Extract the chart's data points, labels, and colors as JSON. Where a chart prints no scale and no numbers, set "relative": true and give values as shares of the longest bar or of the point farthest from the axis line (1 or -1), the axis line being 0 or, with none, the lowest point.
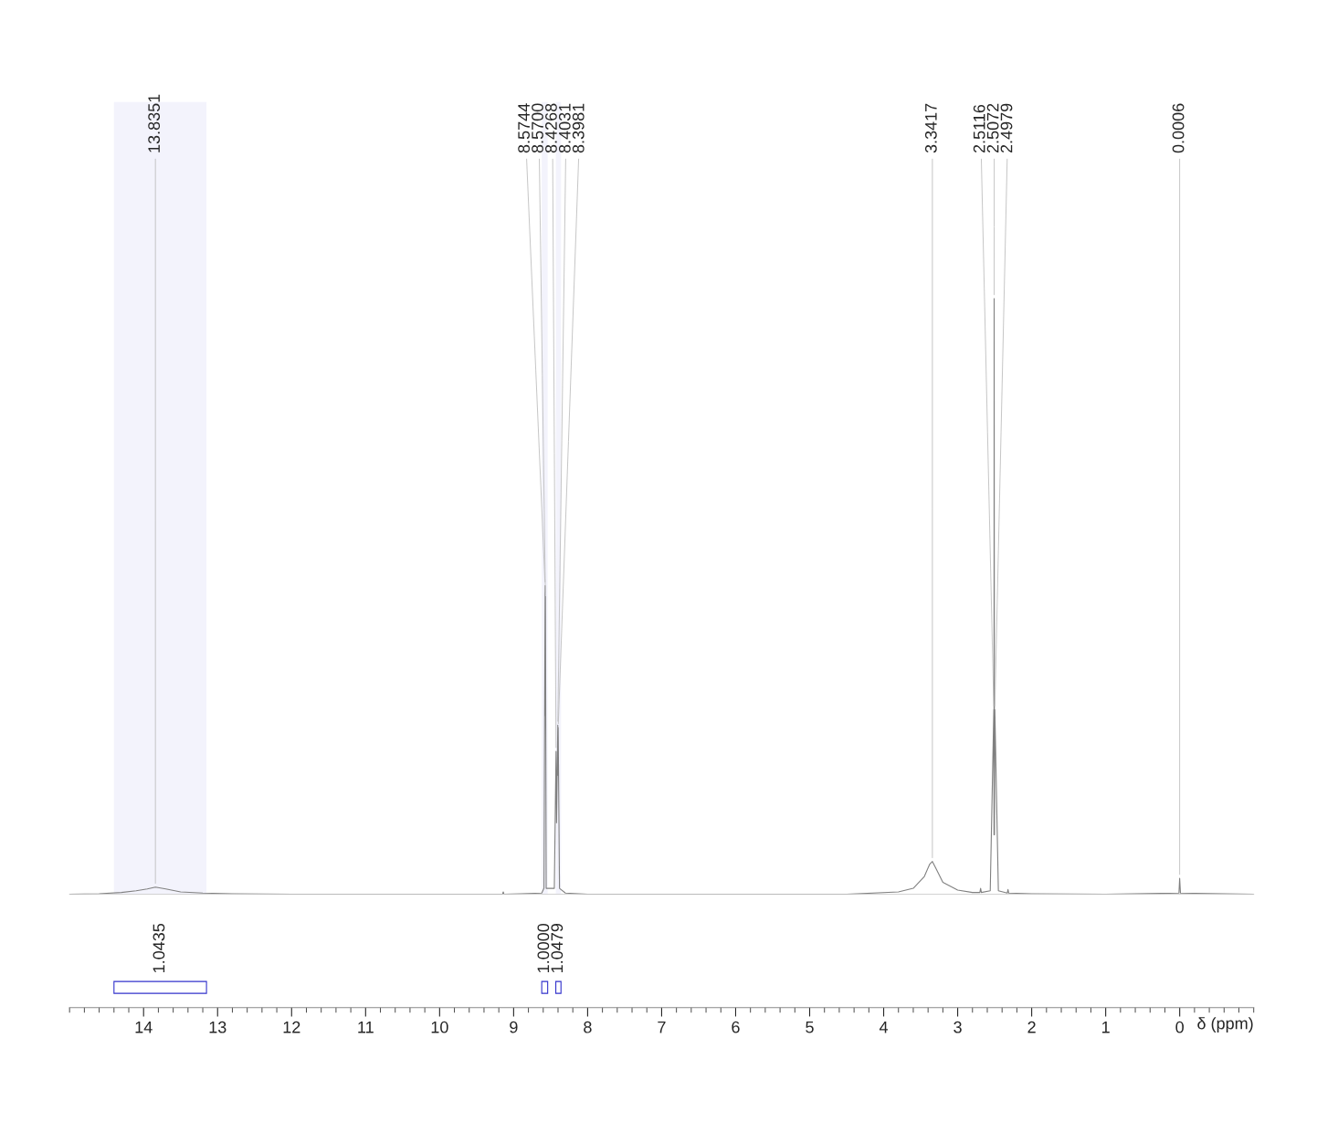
{
  "chart_data": {
    "type": "line",
    "relative": true,
    "xlabel": "δ (ppm)",
    "xlim": [
      15,
      -1
    ],
    "xticks": [
      14,
      13,
      12,
      11,
      10,
      9,
      8,
      7,
      6,
      5,
      4,
      3,
      2,
      1,
      0
    ],
    "tick_labels": "x",
    "legend": false,
    "x": [
      15.0,
      14.6,
      14.3,
      14.1,
      13.95,
      13.84,
      13.7,
      13.5,
      13.2,
      12.8,
      12.0,
      9.15,
      9.14,
      9.13,
      8.9,
      8.62,
      8.59,
      8.5744,
      8.572,
      8.57,
      8.56,
      8.45,
      8.4268,
      8.42,
      8.4031,
      8.4,
      8.3981,
      8.38,
      8.3,
      8.0,
      4.5,
      3.8,
      3.6,
      3.45,
      3.38,
      3.3417,
      3.3,
      3.2,
      3.0,
      2.8,
      2.7,
      2.69,
      2.68,
      2.56,
      2.5116,
      2.509,
      2.5072,
      2.503,
      2.4979,
      2.45,
      2.33,
      2.32,
      2.31,
      2.0,
      1.0,
      0.01,
      0.0006,
      -0.01,
      -1.0
    ],
    "series": [
      {
        "color": "#808080",
        "values": [
          0,
          0.001,
          0.003,
          0.006,
          0.009,
          0.012,
          0.009,
          0.004,
          0.002,
          0.001,
          0,
          0,
          0.004,
          0,
          0.001,
          0.002,
          0.01,
          0.518,
          0.3,
          0.5,
          0.01,
          0.01,
          0.24,
          0.12,
          0.284,
          0.2,
          0.28,
          0.01,
          0.002,
          0,
          0,
          0.004,
          0.01,
          0.03,
          0.05,
          0.055,
          0.045,
          0.02,
          0.007,
          0.003,
          0.003,
          0.01,
          0.003,
          0.006,
          0.31,
          0.1,
          1.0,
          0.1,
          0.31,
          0.006,
          0.002,
          0.008,
          0.002,
          0.001,
          0,
          0.002,
          0.027,
          0.002,
          0
        ]
      }
    ],
    "annotations": [
      {
        "text": "13.8351",
        "x": 13.84,
        "y": 0.012
      },
      {
        "text": "8.5744",
        "x": 8.5744,
        "y": 0.518
      },
      {
        "text": "8.5700",
        "x": 8.57,
        "y": 0.5
      },
      {
        "text": "8.4268",
        "x": 8.4268,
        "y": 0.24
      },
      {
        "text": "8.4031",
        "x": 8.4031,
        "y": 0.284
      },
      {
        "text": "8.3981",
        "x": 8.3981,
        "y": 0.28
      },
      {
        "text": "3.3417",
        "x": 3.3417,
        "y": 0.055
      },
      {
        "text": "2.5116",
        "x": 2.5116,
        "y": 0.31
      },
      {
        "text": "2.5072",
        "x": 2.5072,
        "y": 1.0
      },
      {
        "text": "2.4979",
        "x": 2.4979,
        "y": 0.31
      },
      {
        "text": "0.0006",
        "x": 0.0006,
        "y": 0.027
      }
    ],
    "bands": [
      {
        "axis": "x",
        "from": 14.4,
        "to": 13.15,
        "label": "1.0435",
        "color": "#3333cc"
      },
      {
        "axis": "x",
        "from": 8.62,
        "to": 8.54,
        "label": "1.0000",
        "color": "#3333cc"
      },
      {
        "axis": "x",
        "from": 8.43,
        "to": 8.36,
        "label": "1.0479",
        "color": "#3333cc"
      }
    ]
  }
}
